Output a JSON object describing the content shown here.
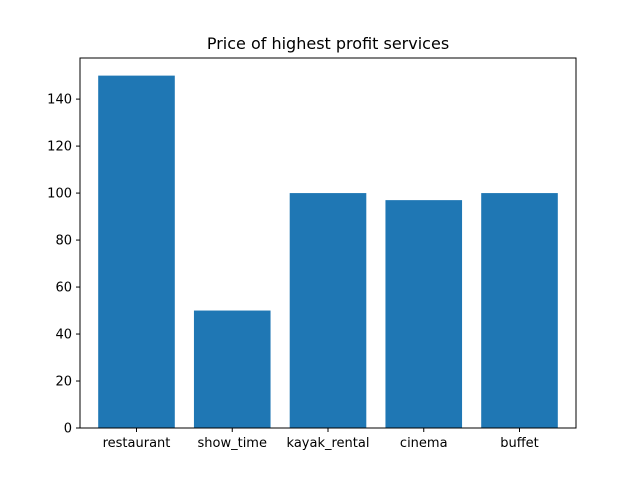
{
  "chart_data": {
    "type": "bar",
    "title": "Price of highest profit services",
    "xlabel": "",
    "ylabel": "",
    "categories": [
      "restaurant",
      "show_time",
      "kayak_rental",
      "cinema",
      "buffet"
    ],
    "values": [
      150,
      50,
      100,
      97,
      100
    ],
    "ylim": [
      0,
      157.5
    ],
    "yticks": [
      0,
      20,
      40,
      60,
      80,
      100,
      120,
      140
    ],
    "bar_color": "#1f77b4",
    "grid": false,
    "legend": "none"
  }
}
